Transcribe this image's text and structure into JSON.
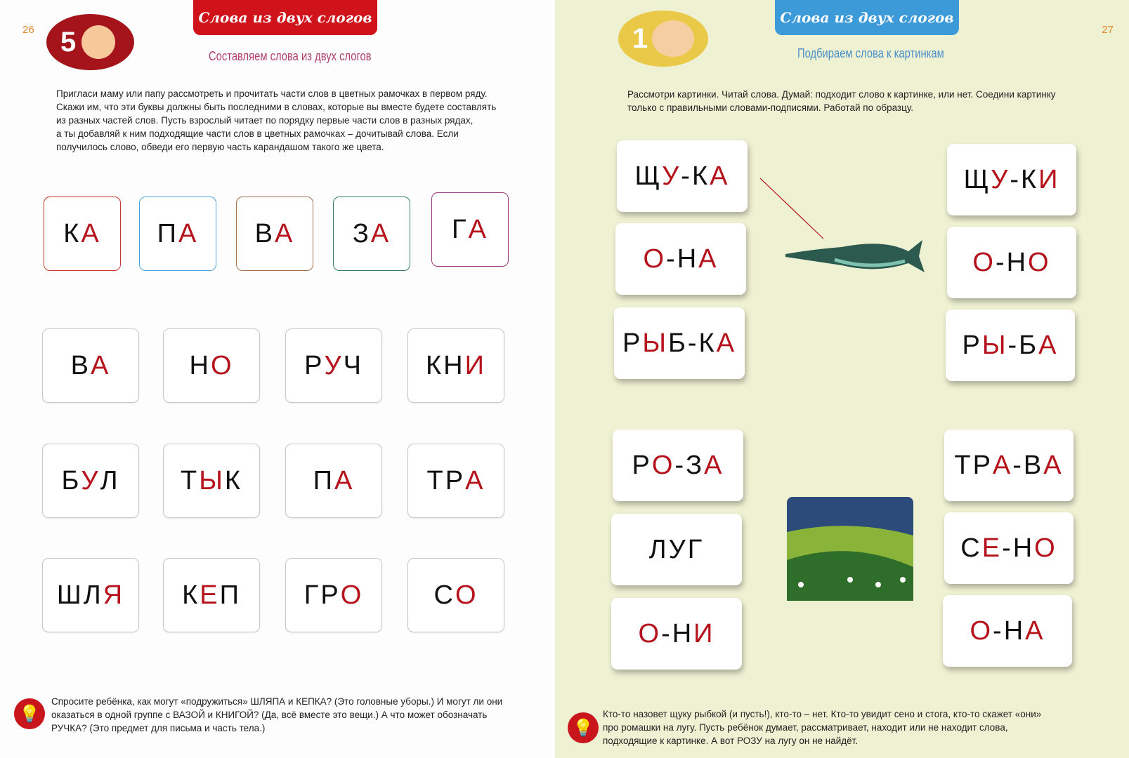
{
  "left": {
    "page_number": "26",
    "badge_number": "5",
    "banner": "Слова из двух слогов",
    "subtitle": "Составляем слова из двух слогов",
    "instructions": [
      "Пригласи маму или папу рассмотреть и прочитать части слов в цветных рамочках в первом ряду.",
      "Скажи им, что эти буквы должны быть последними в словах, которые вы вместе будете составлять",
      "из разных частей слов. Пусть взрослый читает по порядку первые части слов в разных рядах,",
      "а ты добавляй к ним подходящие части слов в цветных рамочках – дочитывай слова. Если",
      "получилось слово, обведи его первую часть карандашом такого же цвета."
    ],
    "framed_cards": [
      {
        "frame": "#c0392b",
        "parts": [
          [
            "К",
            "k"
          ],
          [
            "А",
            "r"
          ]
        ]
      },
      {
        "frame": "#4aa3d8",
        "parts": [
          [
            "П",
            "k"
          ],
          [
            "А",
            "r"
          ]
        ]
      },
      {
        "frame": "#a07050",
        "parts": [
          [
            "В",
            "k"
          ],
          [
            "А",
            "r"
          ]
        ]
      },
      {
        "frame": "#2e7d5b",
        "parts": [
          [
            "З",
            "k"
          ],
          [
            "А",
            "r"
          ]
        ]
      },
      {
        "frame": "#9b3a7a",
        "parts": [
          [
            "Г",
            "k"
          ],
          [
            "А",
            "r"
          ]
        ]
      }
    ],
    "rows": [
      [
        {
          "parts": [
            [
              "В",
              "k"
            ],
            [
              "А",
              "r"
            ]
          ]
        },
        {
          "parts": [
            [
              "Н",
              "k"
            ],
            [
              "О",
              "r"
            ]
          ]
        },
        {
          "parts": [
            [
              "Р",
              "k"
            ],
            [
              "У",
              "r"
            ],
            [
              "Ч",
              "k"
            ]
          ]
        },
        {
          "parts": [
            [
              "КН",
              "k"
            ],
            [
              "И",
              "r"
            ]
          ]
        }
      ],
      [
        {
          "parts": [
            [
              "Б",
              "k"
            ],
            [
              "У",
              "r"
            ],
            [
              "Л",
              "k"
            ]
          ]
        },
        {
          "parts": [
            [
              "Т",
              "k"
            ],
            [
              "Ы",
              "r"
            ],
            [
              "К",
              "k"
            ]
          ]
        },
        {
          "parts": [
            [
              "П",
              "k"
            ],
            [
              "А",
              "r"
            ]
          ]
        },
        {
          "parts": [
            [
              "ТР",
              "k"
            ],
            [
              "А",
              "r"
            ]
          ]
        }
      ],
      [
        {
          "parts": [
            [
              "ШЛ",
              "k"
            ],
            [
              "Я",
              "r"
            ]
          ]
        },
        {
          "parts": [
            [
              "К",
              "k"
            ],
            [
              "Е",
              "r"
            ],
            [
              "П",
              "k"
            ]
          ]
        },
        {
          "parts": [
            [
              "ГР",
              "k"
            ],
            [
              "О",
              "r"
            ]
          ]
        },
        {
          "parts": [
            [
              "С",
              "k"
            ],
            [
              "О",
              "r"
            ]
          ]
        }
      ]
    ],
    "note": [
      "Спросите ребёнка, как могут «подружиться» ШЛЯПА и КЕПКА? (Это головные уборы.) И могут ли они",
      "оказаться в одной группе с ВАЗОЙ и КНИГОЙ? (Да, всё вместе это вещи.) А что может обозначать",
      "РУЧКА? (Это предмет для письма и часть тела.)"
    ]
  },
  "right": {
    "page_number": "27",
    "badge_number": "1",
    "banner": "Слова из двух слогов",
    "subtitle": "Подбираем слова к картинкам",
    "instructions": [
      "Рассмотри картинки. Читай слова. Думай: подходит слово к картинке, или нет. Соедини картинку",
      "только с правильными словами-подписями. Работай по образцу."
    ],
    "left_column": [
      {
        "parts": [
          [
            "Щ",
            "k"
          ],
          [
            "У",
            "r"
          ],
          [
            "-К",
            "k"
          ],
          [
            "А",
            "r"
          ]
        ]
      },
      {
        "parts": [
          [
            "О",
            "r"
          ],
          [
            "-Н",
            "k"
          ],
          [
            "А",
            "r"
          ]
        ]
      },
      {
        "parts": [
          [
            "Р",
            "k"
          ],
          [
            "Ы",
            "r"
          ],
          [
            "Б-К",
            "k"
          ],
          [
            "А",
            "r"
          ]
        ]
      },
      {
        "parts": [
          [
            "Р",
            "k"
          ],
          [
            "О",
            "r"
          ],
          [
            "-З",
            "k"
          ],
          [
            "А",
            "r"
          ]
        ]
      },
      {
        "parts": [
          [
            "ЛУГ",
            "k"
          ]
        ]
      },
      {
        "parts": [
          [
            "О",
            "r"
          ],
          [
            "-Н",
            "k"
          ],
          [
            "И",
            "r"
          ]
        ]
      }
    ],
    "right_column": [
      {
        "parts": [
          [
            "Щ",
            "k"
          ],
          [
            "У",
            "r"
          ],
          [
            "-К",
            "k"
          ],
          [
            "И",
            "r"
          ]
        ]
      },
      {
        "parts": [
          [
            "О",
            "r"
          ],
          [
            "-Н",
            "k"
          ],
          [
            "О",
            "r"
          ]
        ]
      },
      {
        "parts": [
          [
            "Р",
            "k"
          ],
          [
            "Ы",
            "r"
          ],
          [
            "-Б",
            "k"
          ],
          [
            "А",
            "r"
          ]
        ]
      },
      {
        "parts": [
          [
            "ТР",
            "k"
          ],
          [
            "А",
            "r"
          ],
          [
            "-В",
            "k"
          ],
          [
            "А",
            "r"
          ]
        ]
      },
      {
        "parts": [
          [
            "С",
            "k"
          ],
          [
            "Е",
            "r"
          ],
          [
            "-Н",
            "k"
          ],
          [
            "О",
            "r"
          ]
        ]
      },
      {
        "parts": [
          [
            "О",
            "r"
          ],
          [
            "-Н",
            "k"
          ],
          [
            "А",
            "r"
          ]
        ]
      }
    ],
    "note": [
      "Кто-то назовет щуку рыбкой (и пусть!), кто-то – нет. Кто-то увидит сено и стога, кто-то скажет «они»",
      "про ромашки на лугу. Пусть ребёнок думает, рассматривает, находит или не находит слова,",
      "подходящие к картинке. А вот РОЗУ на лугу он не найдёт."
    ]
  },
  "colors": {
    "red_letter": "#b5121b",
    "black_letter": "#111111",
    "left_banner": "#d0131b",
    "right_banner": "#3d9ad8",
    "right_page_bg": "#eff1d3"
  },
  "icons": [
    "lightbulb-icon",
    "pike-fish-illustration",
    "meadow-illustration",
    "boy-face-icon",
    "mother-child-icon"
  ]
}
